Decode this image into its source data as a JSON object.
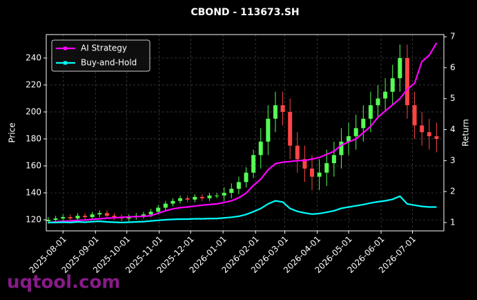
{
  "chart_data": {
    "type": "candlestick",
    "title": "CBOND - 113673.SH",
    "ylabel": "Price",
    "y2label": "Return",
    "watermark": "uqtool.com",
    "x": [
      "2025-07-18",
      "2025-07-25",
      "2025-08-01",
      "2025-08-08",
      "2025-08-15",
      "2025-08-22",
      "2025-08-29",
      "2025-09-05",
      "2025-09-12",
      "2025-09-19",
      "2025-09-26",
      "2025-10-03",
      "2025-10-10",
      "2025-10-17",
      "2025-10-24",
      "2025-10-31",
      "2025-11-07",
      "2025-11-14",
      "2025-11-21",
      "2025-11-28",
      "2025-12-05",
      "2025-12-12",
      "2025-12-19",
      "2025-12-26",
      "2026-01-02",
      "2026-01-09",
      "2026-01-16",
      "2026-01-23",
      "2026-01-30",
      "2026-02-06",
      "2026-02-13",
      "2026-02-20",
      "2026-02-27",
      "2026-03-06",
      "2026-03-13",
      "2026-03-20",
      "2026-03-27",
      "2026-04-03",
      "2026-04-10",
      "2026-04-17",
      "2026-04-24",
      "2026-05-01",
      "2026-05-08",
      "2026-05-15",
      "2026-05-22",
      "2026-05-29",
      "2026-06-05",
      "2026-06-12",
      "2026-06-19",
      "2026-06-26",
      "2026-07-03",
      "2026-07-10",
      "2026-07-17",
      "2026-07-24"
    ],
    "open": [
      119,
      120,
      121,
      122,
      121,
      123,
      122,
      124,
      125,
      123,
      122,
      121,
      122,
      123,
      124,
      126,
      129,
      132,
      134,
      136,
      135,
      137,
      136,
      138,
      138,
      140,
      143,
      148,
      155,
      168,
      178,
      195,
      205,
      200,
      175,
      165,
      158,
      152,
      155,
      162,
      168,
      178,
      182,
      188,
      195,
      205,
      210,
      215,
      225,
      240,
      205,
      190,
      185,
      182
    ],
    "high": [
      122,
      123,
      124,
      124,
      125,
      125,
      126,
      127,
      127,
      125,
      124,
      124,
      125,
      126,
      128,
      131,
      134,
      136,
      138,
      138,
      139,
      139,
      140,
      140,
      144,
      147,
      152,
      159,
      172,
      188,
      205,
      215,
      215,
      210,
      185,
      175,
      168,
      165,
      172,
      178,
      188,
      192,
      198,
      205,
      215,
      220,
      225,
      235,
      250,
      250,
      215,
      200,
      195,
      192
    ],
    "low": [
      117,
      118,
      119,
      119,
      119,
      120,
      120,
      122,
      121,
      120,
      119,
      119,
      120,
      121,
      122,
      124,
      127,
      130,
      132,
      133,
      133,
      134,
      134,
      136,
      134,
      136,
      139,
      144,
      151,
      158,
      168,
      185,
      190,
      165,
      155,
      148,
      142,
      142,
      145,
      152,
      158,
      168,
      172,
      178,
      185,
      195,
      200,
      205,
      215,
      195,
      180,
      175,
      172,
      170
    ],
    "close": [
      120,
      121,
      122,
      121,
      123,
      122,
      124,
      125,
      123,
      122,
      121,
      122,
      123,
      124,
      126,
      129,
      132,
      134,
      136,
      135,
      137,
      136,
      138,
      138,
      140,
      143,
      148,
      155,
      168,
      178,
      195,
      205,
      200,
      175,
      165,
      158,
      152,
      155,
      162,
      168,
      178,
      182,
      188,
      195,
      205,
      210,
      215,
      225,
      240,
      205,
      190,
      185,
      182,
      180
    ],
    "up_color": "#55ff55",
    "down_color": "#ff4444",
    "series": [
      {
        "name": "AI Strategy",
        "color": "#ff00ff",
        "axis": "y2",
        "values": [
          1.0,
          1.02,
          1.04,
          1.05,
          1.07,
          1.08,
          1.1,
          1.12,
          1.14,
          1.15,
          1.17,
          1.18,
          1.19,
          1.2,
          1.22,
          1.3,
          1.38,
          1.44,
          1.48,
          1.5,
          1.53,
          1.56,
          1.58,
          1.6,
          1.65,
          1.7,
          1.8,
          1.95,
          2.2,
          2.4,
          2.7,
          2.9,
          2.95,
          2.97,
          3.0,
          3.0,
          3.05,
          3.1,
          3.2,
          3.3,
          3.5,
          3.6,
          3.7,
          3.9,
          4.1,
          4.4,
          4.6,
          4.8,
          5.0,
          5.3,
          5.5,
          6.2,
          6.4,
          6.8
        ]
      },
      {
        "name": "Buy-and-Hold",
        "color": "#00ffff",
        "axis": "y2",
        "values": [
          1.0,
          1.0,
          1.01,
          1.0,
          1.02,
          1.01,
          1.03,
          1.04,
          1.02,
          1.01,
          1.0,
          1.01,
          1.02,
          1.03,
          1.05,
          1.07,
          1.09,
          1.1,
          1.11,
          1.11,
          1.12,
          1.12,
          1.13,
          1.13,
          1.15,
          1.17,
          1.2,
          1.26,
          1.35,
          1.45,
          1.6,
          1.7,
          1.66,
          1.45,
          1.36,
          1.31,
          1.27,
          1.29,
          1.33,
          1.38,
          1.46,
          1.5,
          1.54,
          1.58,
          1.63,
          1.67,
          1.7,
          1.75,
          1.85,
          1.6,
          1.56,
          1.52,
          1.5,
          1.5
        ]
      }
    ],
    "xlim": [
      "2025-07-16",
      "2026-07-31"
    ],
    "xticks": [
      "2025-08-01",
      "2025-09-01",
      "2025-10-01",
      "2025-11-01",
      "2025-12-01",
      "2026-01-01",
      "2026-02-01",
      "2026-03-01",
      "2026-04-01",
      "2026-05-01",
      "2026-06-01",
      "2026-07-01"
    ],
    "ylim": [
      111.8,
      257.4
    ],
    "yticks": [
      120,
      140,
      160,
      180,
      200,
      220,
      240
    ],
    "y2lim": [
      0.73,
      7.07
    ],
    "y2ticks": [
      1,
      2,
      3,
      4,
      5,
      6,
      7
    ],
    "grid": true,
    "legend": "upper left"
  }
}
